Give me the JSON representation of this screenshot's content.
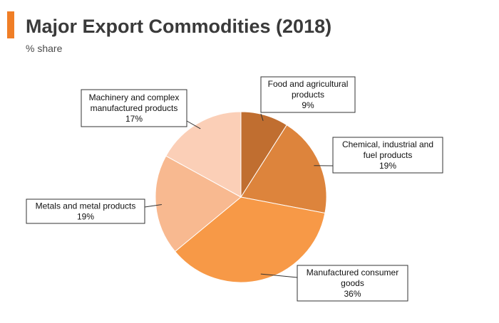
{
  "header": {
    "title": "Major Export Commodities (2018)",
    "subtitle": "% share",
    "accent_color": "#F07E26"
  },
  "chart_data": {
    "type": "pie",
    "title": "Major Export Commodities (2018)",
    "subtitle": "% share",
    "unit": "%",
    "start_angle_deg": 0,
    "direction": "clockwise",
    "slices": [
      {
        "label_lines": [
          "Food and agricultural",
          "products"
        ],
        "value": 9,
        "value_label": "9%",
        "color": "#C06E30"
      },
      {
        "label_lines": [
          "Chemical, industrial and",
          "fuel products"
        ],
        "value": 19,
        "value_label": "19%",
        "color": "#DD843C"
      },
      {
        "label_lines": [
          "Manufactured consumer",
          "goods"
        ],
        "value": 36,
        "value_label": "36%",
        "color": "#F79947"
      },
      {
        "label_lines": [
          "Metals and metal products"
        ],
        "value": 19,
        "value_label": "19%",
        "color": "#F8B990"
      },
      {
        "label_lines": [
          "Machinery and complex",
          "manufactured products"
        ],
        "value": 17,
        "value_label": "17%",
        "color": "#FBCFB7"
      }
    ]
  }
}
